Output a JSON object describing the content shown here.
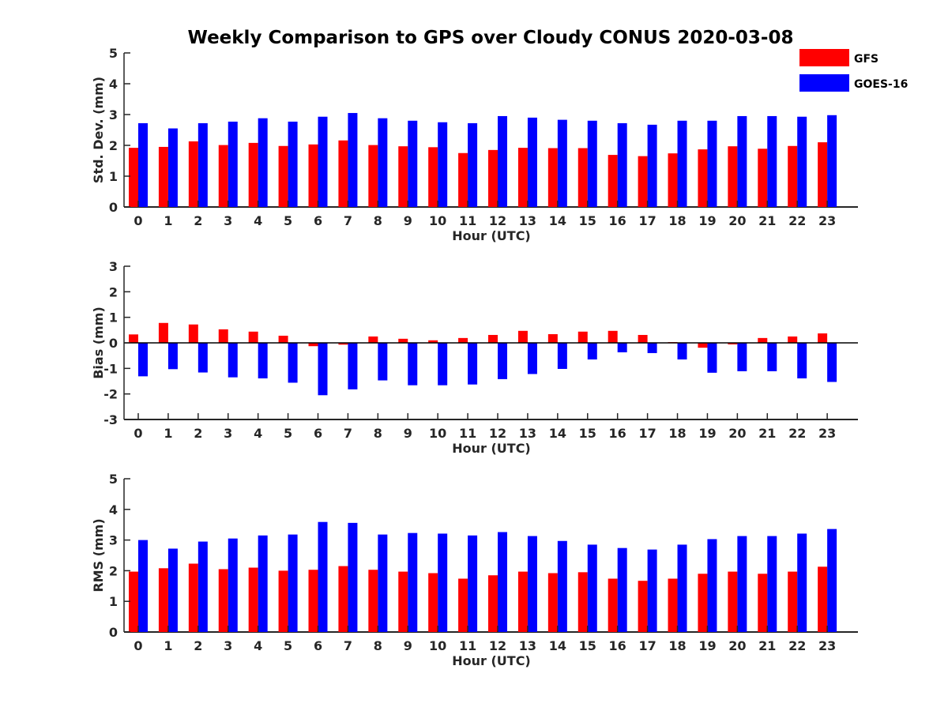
{
  "figure": {
    "title": "Weekly Comparison to GPS over Cloudy CONUS 2020-03-08"
  },
  "legend": {
    "placement": "top-right",
    "entries": [
      {
        "name": "GFS",
        "color": "#ff0000"
      },
      {
        "name": "GOES-16",
        "color": "#0000ff"
      }
    ]
  },
  "chart_data": [
    {
      "type": "bar",
      "title": "Weekly Comparison to GPS over Cloudy CONUS 2020-03-08",
      "xlabel": "Hour (UTC)",
      "ylabel": "Std. Dev. (mm)",
      "ylim": [
        0,
        5
      ],
      "yticks": [
        "0",
        "1",
        "2",
        "3",
        "4",
        "5"
      ],
      "categories": [
        "0",
        "1",
        "2",
        "3",
        "4",
        "5",
        "6",
        "7",
        "8",
        "9",
        "10",
        "11",
        "12",
        "13",
        "14",
        "15",
        "16",
        "17",
        "18",
        "19",
        "20",
        "21",
        "22",
        "23"
      ],
      "series": [
        {
          "name": "GFS",
          "color": "#ff0000",
          "values": [
            1.92,
            1.95,
            2.13,
            2.01,
            2.08,
            1.98,
            2.03,
            2.16,
            2.01,
            1.97,
            1.94,
            1.75,
            1.85,
            1.92,
            1.91,
            1.91,
            1.69,
            1.65,
            1.74,
            1.87,
            1.97,
            1.89,
            1.98,
            2.1
          ]
        },
        {
          "name": "GOES-16",
          "color": "#0000ff",
          "values": [
            2.72,
            2.55,
            2.72,
            2.77,
            2.88,
            2.77,
            2.93,
            3.05,
            2.88,
            2.8,
            2.75,
            2.72,
            2.95,
            2.9,
            2.83,
            2.8,
            2.72,
            2.67,
            2.8,
            2.8,
            2.95,
            2.95,
            2.93,
            2.98
          ]
        }
      ]
    },
    {
      "type": "bar",
      "xlabel": "Hour (UTC)",
      "ylabel": "Bias (mm)",
      "ylim": [
        -3,
        3
      ],
      "yticks": [
        "-3",
        "-2",
        "-1",
        "0",
        "1",
        "2",
        "3"
      ],
      "categories": [
        "0",
        "1",
        "2",
        "3",
        "4",
        "5",
        "6",
        "7",
        "8",
        "9",
        "10",
        "11",
        "12",
        "13",
        "14",
        "15",
        "16",
        "17",
        "18",
        "19",
        "20",
        "21",
        "22",
        "23"
      ],
      "series": [
        {
          "name": "GFS",
          "color": "#ff0000",
          "values": [
            0.33,
            0.78,
            0.72,
            0.53,
            0.44,
            0.28,
            -0.13,
            -0.07,
            0.25,
            0.16,
            0.1,
            0.19,
            0.31,
            0.47,
            0.34,
            0.44,
            0.47,
            0.31,
            0.03,
            -0.19,
            -0.06,
            0.19,
            0.25,
            0.37
          ]
        },
        {
          "name": "GOES-16",
          "color": "#0000ff",
          "values": [
            -1.31,
            -1.03,
            -1.16,
            -1.35,
            -1.39,
            -1.56,
            -2.05,
            -1.82,
            -1.47,
            -1.66,
            -1.66,
            -1.63,
            -1.42,
            -1.22,
            -1.02,
            -0.65,
            -0.37,
            -0.4,
            -0.65,
            -1.17,
            -1.11,
            -1.11,
            -1.39,
            -1.53
          ]
        }
      ]
    },
    {
      "type": "bar",
      "xlabel": "Hour (UTC)",
      "ylabel": "RMS (mm)",
      "ylim": [
        0,
        5
      ],
      "yticks": [
        "0",
        "1",
        "2",
        "3",
        "4",
        "5"
      ],
      "categories": [
        "0",
        "1",
        "2",
        "3",
        "4",
        "5",
        "6",
        "7",
        "8",
        "9",
        "10",
        "11",
        "12",
        "13",
        "14",
        "15",
        "16",
        "17",
        "18",
        "19",
        "20",
        "21",
        "22",
        "23"
      ],
      "series": [
        {
          "name": "GFS",
          "color": "#ff0000",
          "values": [
            1.97,
            2.08,
            2.23,
            2.05,
            2.1,
            2.0,
            2.03,
            2.15,
            2.03,
            1.97,
            1.92,
            1.74,
            1.85,
            1.97,
            1.92,
            1.95,
            1.74,
            1.67,
            1.74,
            1.9,
            1.97,
            1.9,
            1.97,
            2.13
          ]
        },
        {
          "name": "GOES-16",
          "color": "#0000ff",
          "values": [
            3.0,
            2.72,
            2.95,
            3.05,
            3.15,
            3.18,
            3.59,
            3.56,
            3.18,
            3.23,
            3.21,
            3.15,
            3.26,
            3.13,
            2.97,
            2.85,
            2.74,
            2.69,
            2.85,
            3.03,
            3.13,
            3.13,
            3.21,
            3.36
          ]
        }
      ]
    }
  ]
}
